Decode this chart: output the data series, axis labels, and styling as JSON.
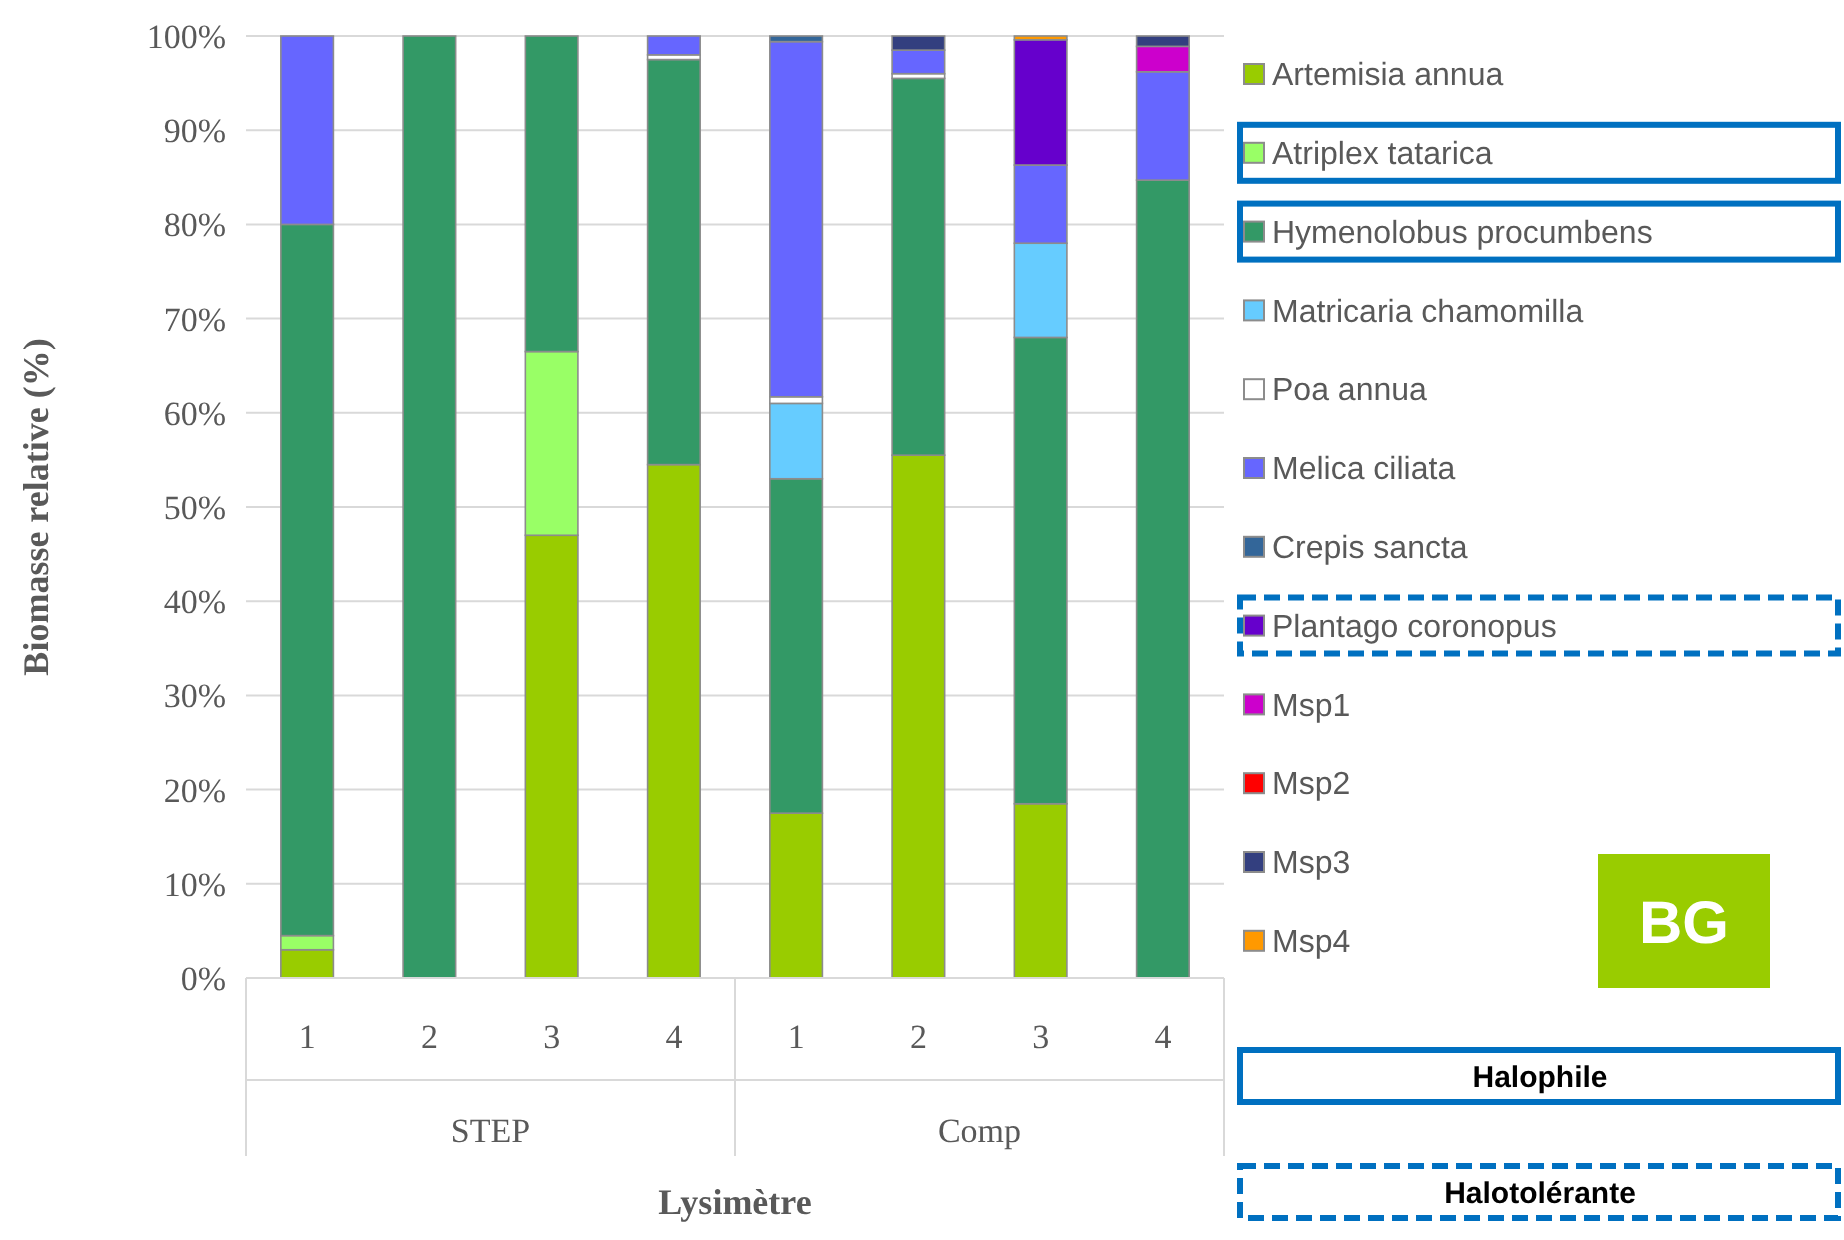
{
  "chart_data": {
    "type": "bar",
    "stacked": true,
    "ylabel": "Biomasse relative (%)",
    "xlabel": "Lysimètre",
    "categories": [
      "1",
      "2",
      "3",
      "4",
      "1",
      "2",
      "3",
      "4"
    ],
    "series": [
      {
        "name": "Artemisia annua",
        "color": "#99cc00",
        "values": [
          3,
          0,
          47,
          54.5,
          17.5,
          55.5,
          18.5,
          0
        ]
      },
      {
        "name": "Atriplex tatarica",
        "color": "#99ff66",
        "values": [
          1.5,
          0,
          19.5,
          0,
          0,
          0,
          0,
          0
        ]
      },
      {
        "name": "Hymenolobus procumbens",
        "color": "#339966",
        "values": [
          75.5,
          100,
          33.5,
          43,
          35.5,
          40,
          49.5,
          84.7
        ]
      },
      {
        "name": "Matricaria chamomilla",
        "color": "#66ccff",
        "values": [
          0,
          0,
          0,
          0,
          8,
          0,
          10,
          0
        ]
      },
      {
        "name": "Poa annua",
        "color": "#ffffff",
        "values": [
          0,
          0,
          0,
          0.5,
          0.7,
          0.5,
          0,
          0
        ]
      },
      {
        "name": "Melica ciliata",
        "color": "#6666ff",
        "values": [
          20,
          0,
          0,
          2,
          37.7,
          2.5,
          8.3,
          11.5
        ]
      },
      {
        "name": "Crepis sancta",
        "color": "#336699",
        "values": [
          0,
          0,
          0,
          0,
          0.6,
          0,
          0,
          0
        ]
      },
      {
        "name": "Plantago coronopus",
        "color": "#6600cc",
        "values": [
          0,
          0,
          0,
          0,
          0,
          0,
          13.3,
          0
        ]
      },
      {
        "name": "Msp1",
        "color": "#cc00cc",
        "values": [
          0,
          0,
          0,
          0,
          0,
          0,
          0,
          2.7
        ]
      },
      {
        "name": "Msp2",
        "color": "#ff0000",
        "values": [
          0,
          0,
          0,
          0,
          0,
          0,
          0,
          0
        ]
      },
      {
        "name": "Msp3",
        "color": "#333f7f",
        "values": [
          0,
          0,
          0,
          0,
          0,
          1.5,
          0,
          1.1
        ]
      },
      {
        "name": "Msp4",
        "color": "#ff9900",
        "values": [
          0,
          0,
          0,
          0,
          0,
          0,
          0.4,
          0
        ]
      }
    ],
    "ylim": [
      0,
      100
    ],
    "yticks": [
      {
        "value": 0,
        "label": "0%"
      },
      {
        "value": 10,
        "label": "10%"
      },
      {
        "value": 20,
        "label": "20%"
      },
      {
        "value": 30,
        "label": "30%"
      },
      {
        "value": 40,
        "label": "40%"
      },
      {
        "value": 50,
        "label": "50%"
      },
      {
        "value": 60,
        "label": "60%"
      },
      {
        "value": 70,
        "label": "70%"
      },
      {
        "value": 80,
        "label": "80%"
      },
      {
        "value": 90,
        "label": "90%"
      },
      {
        "value": 100,
        "label": "100%"
      }
    ],
    "grid": "y",
    "legend": "right",
    "annotations": [
      "STEP",
      "Comp",
      "BG",
      "Halophile",
      "Halotolérante"
    ]
  }
}
